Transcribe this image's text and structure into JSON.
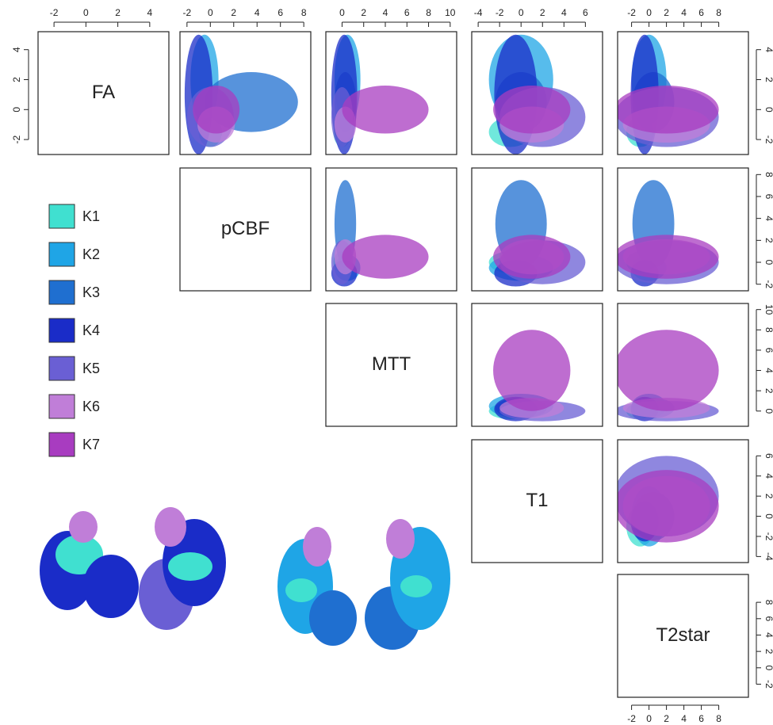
{
  "chart_data": {
    "type": "pairs",
    "clusters": [
      {
        "name": "K1",
        "color": "#40e0d0"
      },
      {
        "name": "K2",
        "color": "#1fa5e6"
      },
      {
        "name": "K3",
        "color": "#1f6fd0"
      },
      {
        "name": "K4",
        "color": "#1a2cc8"
      },
      {
        "name": "K5",
        "color": "#6a5fd4"
      },
      {
        "name": "K6",
        "color": "#c07ed8"
      },
      {
        "name": "K7",
        "color": "#a83cc0"
      }
    ],
    "variables": [
      {
        "name": "FA",
        "lim": [
          -3,
          5.2
        ],
        "ticks": [
          -2,
          0,
          2,
          4
        ],
        "means": [
          -1.5,
          2,
          0.5,
          1,
          -0.5,
          -1,
          0
        ],
        "sds": [
          0.5,
          1.5,
          1,
          2,
          1,
          0.6,
          0.8
        ]
      },
      {
        "name": "pCBF",
        "lim": [
          -2.6,
          8.6
        ],
        "ticks": [
          -2,
          0,
          2,
          4,
          6,
          8
        ],
        "means": [
          0,
          -0.5,
          3.5,
          -1,
          0,
          0.5,
          0.5
        ],
        "sds": [
          0.5,
          0.6,
          2,
          0.6,
          1,
          0.8,
          1
        ]
      },
      {
        "name": "MTT",
        "lim": [
          -1.5,
          10.6
        ],
        "ticks": [
          0,
          2,
          4,
          6,
          8,
          10
        ],
        "means": [
          0,
          0.5,
          0.3,
          0.2,
          0,
          0.3,
          4
        ],
        "sds": [
          0.4,
          0.6,
          0.5,
          0.6,
          0.5,
          0.5,
          2
        ]
      },
      {
        "name": "T1",
        "lim": [
          -4.6,
          7.6
        ],
        "ticks": [
          -4,
          -2,
          0,
          2,
          4,
          6
        ],
        "means": [
          -1,
          0,
          0,
          -0.5,
          2,
          1,
          1
        ],
        "sds": [
          1,
          1.5,
          1.2,
          1,
          2,
          1.5,
          1.8
        ]
      },
      {
        "name": "T2star",
        "lim": [
          -3.6,
          11.4
        ],
        "ticks": [
          -2,
          0,
          2,
          4,
          6,
          8
        ],
        "means": [
          -1,
          0,
          0.5,
          -0.5,
          2,
          2,
          2
        ],
        "sds": [
          0.8,
          1,
          1.2,
          0.8,
          3,
          2.5,
          3
        ]
      }
    ]
  }
}
